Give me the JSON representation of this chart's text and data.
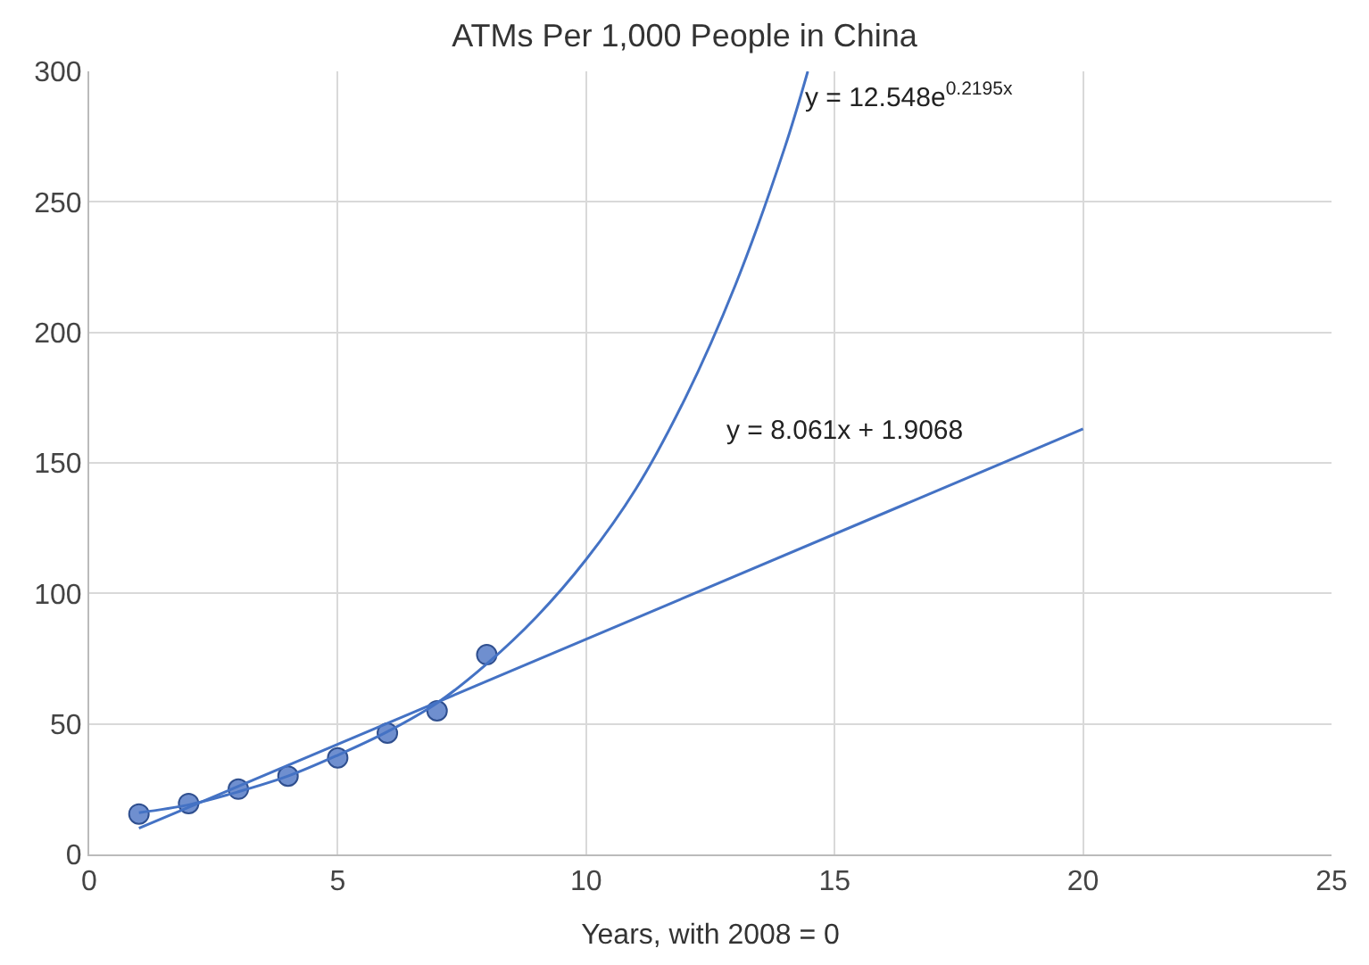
{
  "chart_data": {
    "type": "line",
    "title": "ATMs Per 1,000 People in China",
    "xlabel": "Years, with 2008 = 0",
    "series": [
      {
        "type": "scatter",
        "marker": "circle",
        "color": "#6f8fcf",
        "x": [
          1,
          2,
          3,
          4,
          5,
          6,
          7,
          8
        ],
        "values": [
          15.5,
          19.5,
          25,
          30,
          37,
          46.5,
          55,
          76.5
        ]
      },
      {
        "marker": "none",
        "color": "#4472c4",
        "x": [
          1,
          2,
          3,
          4,
          5,
          6,
          7,
          8,
          9,
          10,
          11,
          12,
          13,
          14,
          14.46
        ],
        "values": [
          16,
          19,
          24,
          30,
          38,
          47,
          58,
          73,
          91,
          113,
          140,
          175,
          218,
          271,
          300
        ]
      },
      {
        "marker": "none",
        "color": "#4472c4",
        "x": [
          1,
          20
        ],
        "values": [
          10,
          163
        ]
      }
    ],
    "annotations": [
      "y = 12.548e$^{0.2195x}$",
      "y = 8.061x + 1.9068"
    ],
    "xlim": [
      0,
      25
    ],
    "xticks": [
      0,
      5,
      10,
      15,
      20,
      25
    ],
    "ylim": [
      0,
      300
    ],
    "yticks": [
      0,
      50,
      100,
      150,
      200,
      250,
      300
    ],
    "grid": true,
    "line_style": "solid"
  }
}
